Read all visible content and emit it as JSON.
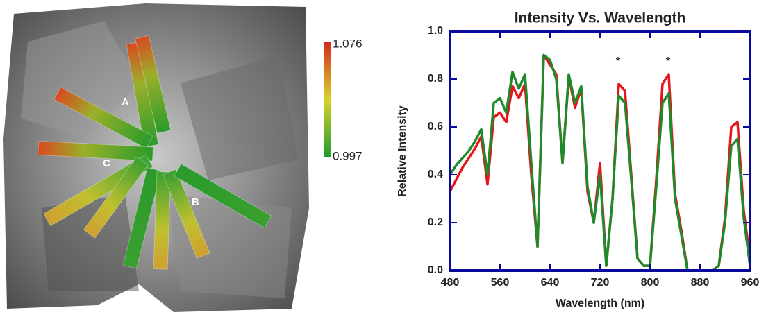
{
  "image_panel": {
    "strip_labels": [
      "A",
      "B",
      "C"
    ],
    "colorbar": {
      "max": 1.076,
      "min": 0.997
    }
  },
  "chart_data": {
    "type": "line",
    "title": "Intensity Vs. Wavelength",
    "x_label": "Wavelength (nm)",
    "y_label": "Relative Intensity",
    "annotations": [
      "*",
      "*"
    ],
    "x": [
      480,
      490,
      500,
      510,
      520,
      530,
      540,
      550,
      560,
      570,
      580,
      590,
      600,
      610,
      620,
      630,
      640,
      650,
      660,
      670,
      680,
      690,
      700,
      710,
      720,
      730,
      740,
      750,
      760,
      770,
      780,
      790,
      800,
      810,
      820,
      830,
      840,
      850,
      860,
      870,
      880,
      890,
      900,
      910,
      920,
      930,
      940,
      950,
      960
    ],
    "series": [
      {
        "color": "#e8141b",
        "values": [
          0.33,
          0.38,
          0.43,
          0.47,
          0.51,
          0.56,
          0.36,
          0.64,
          0.66,
          0.62,
          0.77,
          0.72,
          0.78,
          0.4,
          0.1,
          0.9,
          0.86,
          0.82,
          0.45,
          0.81,
          0.68,
          0.76,
          0.33,
          0.2,
          0.45,
          0.02,
          0.3,
          0.78,
          0.75,
          0.4,
          0.05,
          0.02,
          0.02,
          0.38,
          0.78,
          0.82,
          0.32,
          0.17,
          0.0,
          0.0,
          0.0,
          0.0,
          0.0,
          0.02,
          0.22,
          0.6,
          0.62,
          0.25,
          0.05
        ]
      },
      {
        "color": "#1f8a2a",
        "values": [
          0.4,
          0.44,
          0.47,
          0.5,
          0.54,
          0.59,
          0.4,
          0.7,
          0.72,
          0.66,
          0.83,
          0.76,
          0.82,
          0.45,
          0.1,
          0.9,
          0.88,
          0.8,
          0.45,
          0.82,
          0.7,
          0.77,
          0.35,
          0.2,
          0.4,
          0.02,
          0.3,
          0.73,
          0.7,
          0.38,
          0.05,
          0.02,
          0.02,
          0.35,
          0.7,
          0.74,
          0.3,
          0.15,
          0.0,
          0.0,
          0.0,
          0.0,
          0.0,
          0.02,
          0.2,
          0.52,
          0.55,
          0.22,
          0.02
        ]
      }
    ],
    "xlim": [
      480,
      960
    ],
    "xticks": [
      480,
      560,
      640,
      720,
      800,
      880,
      960
    ],
    "ylim": [
      0,
      1
    ],
    "yticks": [
      {
        "value": 0,
        "label": "0.0"
      },
      0.2,
      0.4,
      0.6,
      0.8,
      {
        "value": 1,
        "label": "1.0"
      }
    ],
    "frame_color": "#0a0a9c"
  }
}
